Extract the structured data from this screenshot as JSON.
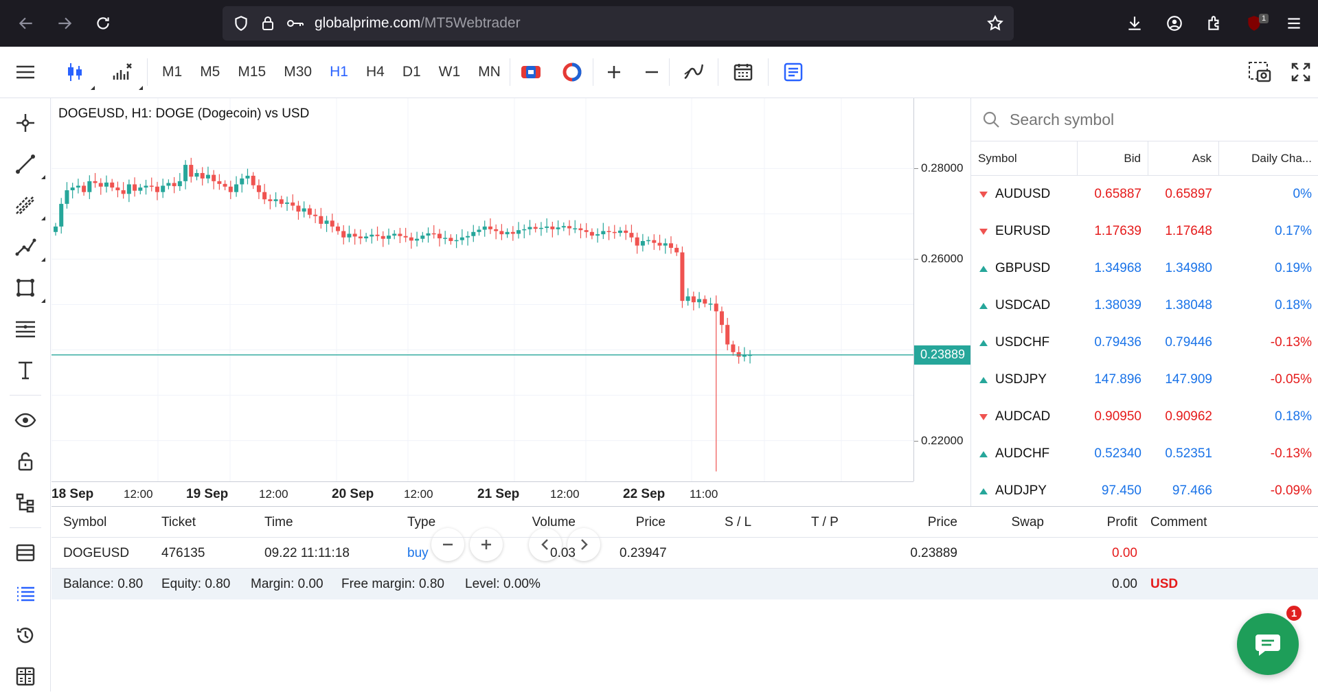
{
  "browser": {
    "url_domain": "globalprime.com",
    "url_path": "/MT5Webtrader",
    "ext_badge": "1"
  },
  "toolbar": {
    "timeframes": [
      "M1",
      "M5",
      "M15",
      "M30",
      "H1",
      "H4",
      "D1",
      "W1",
      "MN"
    ],
    "active_timeframe": "H1"
  },
  "chart": {
    "title": "DOGEUSD, H1: DOGE (Dogecoin) vs USD",
    "current_price": "0.23889",
    "price_labels": [
      "0.28000",
      "0.26000",
      "0.22000"
    ],
    "time_labels": [
      {
        "text": "18 Sep",
        "bold": true
      },
      {
        "text": "12:00",
        "bold": false
      },
      {
        "text": "19 Sep",
        "bold": true
      },
      {
        "text": "12:00",
        "bold": false
      },
      {
        "text": "20 Sep",
        "bold": true
      },
      {
        "text": "12:00",
        "bold": false
      },
      {
        "text": "21 Sep",
        "bold": true
      },
      {
        "text": "12:00",
        "bold": false
      },
      {
        "text": "22 Sep",
        "bold": true
      },
      {
        "text": "11:00",
        "bold": false
      }
    ],
    "up_color": "#26a69a",
    "down_color": "#ef5350"
  },
  "chart_data": {
    "type": "candlestick",
    "symbol": "DOGEUSD",
    "timeframe": "H1",
    "ylim": [
      0.211,
      0.2955
    ],
    "price_ticks": [
      0.28,
      0.26,
      0.22
    ],
    "current": 0.23889,
    "closes": [
      0.2672,
      0.2722,
      0.2752,
      0.2758,
      0.2762,
      0.2748,
      0.2772,
      0.2768,
      0.276,
      0.2769,
      0.2758,
      0.2752,
      0.2744,
      0.2765,
      0.2751,
      0.2758,
      0.2762,
      0.276,
      0.2748,
      0.2762,
      0.2768,
      0.2761,
      0.2772,
      0.2808,
      0.2782,
      0.279,
      0.2778,
      0.2786,
      0.2772,
      0.2766,
      0.276,
      0.2748,
      0.2765,
      0.2778,
      0.2784,
      0.2763,
      0.2748,
      0.2732,
      0.2728,
      0.2732,
      0.2722,
      0.2725,
      0.2718,
      0.2705,
      0.2712,
      0.2698,
      0.2695,
      0.2678,
      0.2685,
      0.2672,
      0.2662,
      0.2648,
      0.2656,
      0.265,
      0.2646,
      0.265,
      0.2654,
      0.2651,
      0.2645,
      0.2652,
      0.2656,
      0.2651,
      0.2648,
      0.2641,
      0.2645,
      0.2652,
      0.2657,
      0.2656,
      0.2646,
      0.2647,
      0.264,
      0.2642,
      0.2648,
      0.2651,
      0.266,
      0.2665,
      0.2672,
      0.2666,
      0.2662,
      0.2655,
      0.266,
      0.2656,
      0.2664,
      0.2666,
      0.2671,
      0.2667,
      0.2669,
      0.2672,
      0.2666,
      0.267,
      0.2673,
      0.2668,
      0.2668,
      0.2664,
      0.266,
      0.2652,
      0.2655,
      0.2662,
      0.266,
      0.2658,
      0.2663,
      0.2658,
      0.2648,
      0.263,
      0.264,
      0.2642,
      0.2636,
      0.263,
      0.2635,
      0.2625,
      0.2615,
      0.2508,
      0.2518,
      0.2505,
      0.2512,
      0.2502,
      0.2502,
      0.2485,
      0.2455,
      0.2412,
      0.2395,
      0.2385,
      0.2388,
      0.2389
    ],
    "spike": {
      "index": 117,
      "low": 0.2132
    }
  },
  "market": {
    "search_placeholder": "Search symbol",
    "headers": [
      "Symbol",
      "Bid",
      "Ask",
      "Daily Cha..."
    ],
    "rows": [
      {
        "symbol": "AUDUSD",
        "dir": "down",
        "bid": "0.65887",
        "ask": "0.65897",
        "bidColor": "red",
        "change": "0%",
        "changeColor": "blue"
      },
      {
        "symbol": "EURUSD",
        "dir": "down",
        "bid": "1.17639",
        "ask": "1.17648",
        "bidColor": "red",
        "change": "0.17%",
        "changeColor": "blue"
      },
      {
        "symbol": "GBPUSD",
        "dir": "up",
        "bid": "1.34968",
        "ask": "1.34980",
        "bidColor": "blue",
        "change": "0.19%",
        "changeColor": "blue"
      },
      {
        "symbol": "USDCAD",
        "dir": "up",
        "bid": "1.38039",
        "ask": "1.38048",
        "bidColor": "blue",
        "change": "0.18%",
        "changeColor": "blue"
      },
      {
        "symbol": "USDCHF",
        "dir": "up",
        "bid": "0.79436",
        "ask": "0.79446",
        "bidColor": "blue",
        "change": "-0.13%",
        "changeColor": "red"
      },
      {
        "symbol": "USDJPY",
        "dir": "up",
        "bid": "147.896",
        "ask": "147.909",
        "bidColor": "blue",
        "change": "-0.05%",
        "changeColor": "red"
      },
      {
        "symbol": "AUDCAD",
        "dir": "down",
        "bid": "0.90950",
        "ask": "0.90962",
        "bidColor": "red",
        "change": "0.18%",
        "changeColor": "blue"
      },
      {
        "symbol": "AUDCHF",
        "dir": "up",
        "bid": "0.52340",
        "ask": "0.52351",
        "bidColor": "blue",
        "change": "-0.13%",
        "changeColor": "red"
      },
      {
        "symbol": "AUDJPY",
        "dir": "up",
        "bid": "97.450",
        "ask": "97.466",
        "bidColor": "blue",
        "change": "-0.09%",
        "changeColor": "red"
      }
    ]
  },
  "trade": {
    "headers": {
      "symbol": "Symbol",
      "ticket": "Ticket",
      "time": "Time",
      "type": "Type",
      "volume": "Volume",
      "price": "Price",
      "sl": "S / L",
      "tp": "T / P",
      "price2": "Price",
      "swap": "Swap",
      "profit": "Profit",
      "comment": "Comment"
    },
    "row": {
      "symbol": "DOGEUSD",
      "ticket": "476135",
      "time": "09.22 11:11:18",
      "type": "buy",
      "volume": "0.03",
      "price": "0.23947",
      "price2": "0.23889",
      "profit": "0.00"
    },
    "balance": {
      "balance": "Balance: 0.80",
      "equity": "Equity: 0.80",
      "margin": "Margin: 0.00",
      "free_margin": "Free margin: 0.80",
      "level": "Level: 0.00%",
      "total": "0.00",
      "currency": "USD"
    }
  },
  "chat": {
    "badge": "1"
  }
}
